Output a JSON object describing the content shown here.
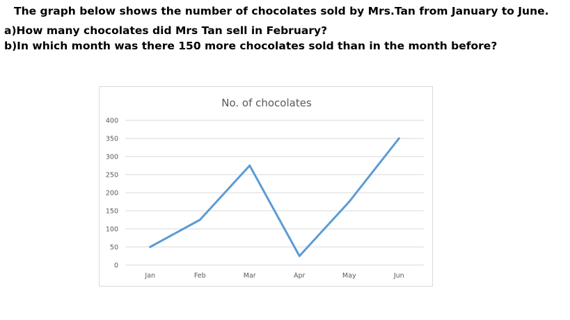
{
  "question": {
    "line1": "The graph below shows the number of chocolates sold by Mrs.Tan from January to June.",
    "line2": "a)How many chocolates did Mrs Tan sell in February?",
    "line3": "b)In which month was there 150 more chocolates sold than in the month before?"
  },
  "colors": {
    "line": "#5b9bd5",
    "grid": "#d9d9d9",
    "text": "#595959"
  },
  "chart_data": {
    "type": "line",
    "title": "No. of chocolates",
    "xlabel": "",
    "ylabel": "",
    "categories": [
      "Jan",
      "Feb",
      "Mar",
      "Apr",
      "May",
      "Jun"
    ],
    "series": [
      {
        "values": [
          50,
          125,
          275,
          25,
          175,
          350
        ]
      }
    ],
    "ylim": [
      0,
      400
    ],
    "yticks": [
      0,
      50,
      100,
      150,
      200,
      250,
      300,
      350,
      400
    ],
    "grid": true,
    "legend": "none"
  }
}
